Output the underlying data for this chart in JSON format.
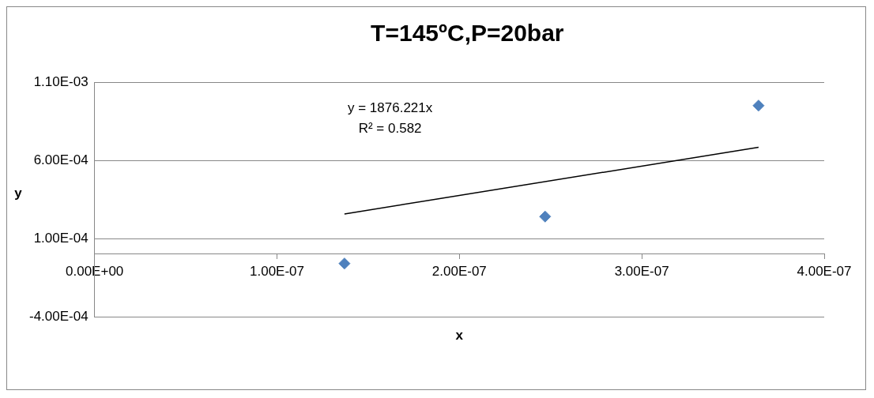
{
  "chart_data": {
    "type": "scatter",
    "title": "T=145ºC,P=20bar",
    "xlabel": "x",
    "ylabel": "y",
    "annotations": [
      "y = 1876.221x",
      "R² = 0.582"
    ],
    "xlim": [
      0,
      4e-07
    ],
    "xticks": [
      {
        "value": 0,
        "label": "0.00E+00"
      },
      {
        "value": 1e-07,
        "label": "1.00E-07"
      },
      {
        "value": 2e-07,
        "label": "2.00E-07"
      },
      {
        "value": 3e-07,
        "label": "3.00E-07"
      },
      {
        "value": 4e-07,
        "label": "4.00E-07"
      }
    ],
    "ylim": [
      -0.0004,
      0.0011
    ],
    "yticks": [
      {
        "value": -0.0004,
        "label": "-4.00E-04"
      },
      {
        "value": 0.0001,
        "label": "1.00E-04"
      },
      {
        "value": 0.0006,
        "label": "6.00E-04"
      },
      {
        "value": 0.0011,
        "label": "1.10E-03"
      }
    ],
    "grid": "y",
    "legend": false,
    "series": [
      {
        "type": "scatter",
        "color": "#4f81bd",
        "marker": "diamond",
        "x": [
          1.37e-07,
          2.47e-07,
          3.64e-07
        ],
        "values": [
          -6e-05,
          0.00024,
          0.00095
        ]
      },
      {
        "type": "line",
        "color": "#000000",
        "marker": "none",
        "line_style": "solid",
        "x": [
          1.37e-07,
          3.64e-07
        ],
        "values": [
          0.000257,
          0.000683
        ]
      }
    ]
  }
}
